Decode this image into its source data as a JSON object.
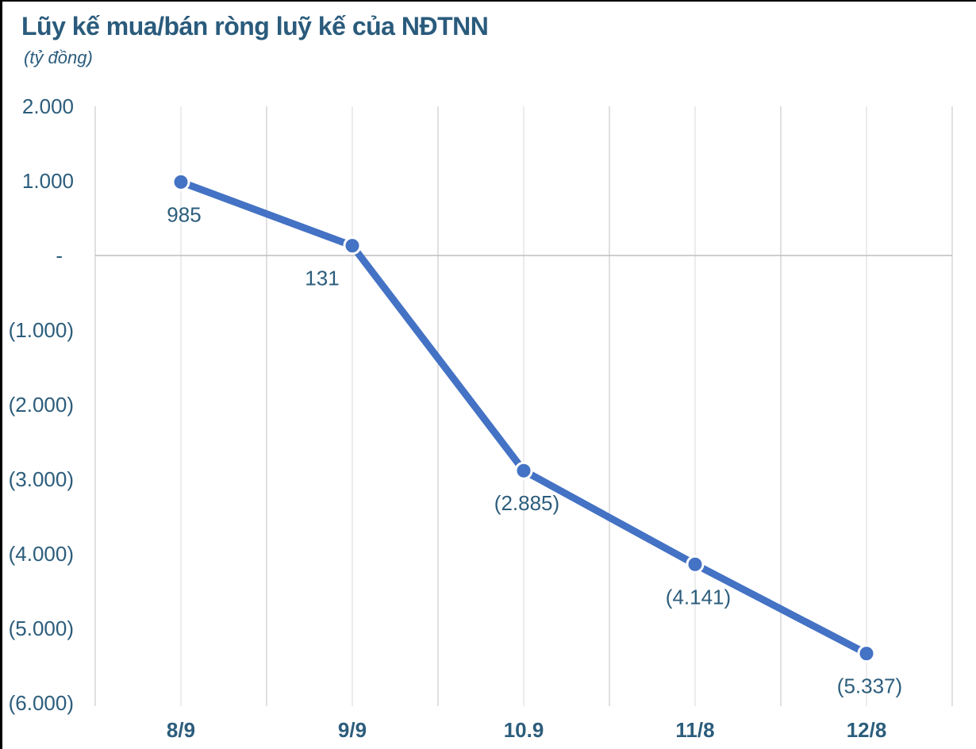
{
  "header": {
    "title": "Lũy kế mua/bán ròng luỹ kế của NĐTNN",
    "subtitle": "(tỷ đồng)"
  },
  "chart_data": {
    "type": "line",
    "title": "Lũy kế mua/bán ròng luỹ kế của NĐTNN",
    "unit_label": "(tỷ đồng)",
    "categories": [
      "8/9",
      "9/9",
      "10.9",
      "11/8",
      "12/8"
    ],
    "values": [
      985,
      131,
      -2885,
      -4141,
      -5337
    ],
    "data_labels": [
      "985",
      "131",
      "(2.885)",
      "(4.141)",
      "(5.337)"
    ],
    "label_anchors": [
      "below",
      "below-left",
      "below",
      "below",
      "below"
    ],
    "xlabel": "",
    "ylabel": "",
    "y_axis": {
      "tick_labels": [
        "2.000",
        "1.000",
        "-",
        "(1.000)",
        "(2.000)",
        "(3.000)",
        "(4.000)",
        "(5.000)",
        "(6.000)"
      ],
      "tick_values": [
        2000,
        1000,
        0,
        -1000,
        -2000,
        -3000,
        -4000,
        -5000,
        -6000
      ],
      "range": [
        -6000,
        2000
      ]
    },
    "layout": {
      "grid_vertical": true,
      "grid_horizontal": false,
      "zero_line": true,
      "legend": "none",
      "markers": "circle"
    },
    "colors": {
      "line": "#4472C4",
      "marker": "#4472C4",
      "marker_ring": "#ffffff",
      "grid_major": "#D2D2D2",
      "grid_minor": "#E4E4E4",
      "zero_line": "#BDBDBD",
      "label_text": "#2C5D7C",
      "title_text": "#2A5B7C",
      "frame_border": "#000000"
    }
  }
}
